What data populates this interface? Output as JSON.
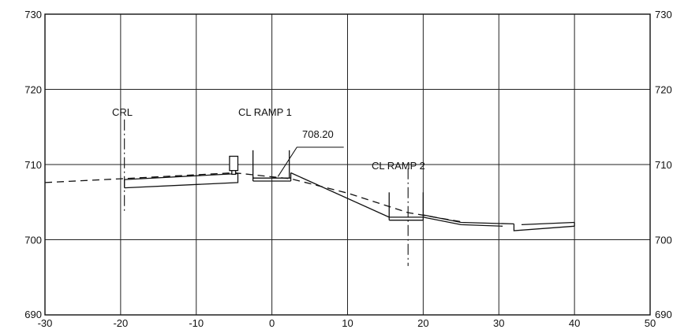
{
  "chart_data": {
    "type": "cross-section",
    "xlim": [
      -30,
      50
    ],
    "ylim": [
      690,
      730
    ],
    "x_ticks": [
      -30,
      -20,
      -10,
      0,
      10,
      20,
      30,
      40,
      50
    ],
    "y_ticks": [
      690,
      700,
      710,
      720,
      730
    ],
    "grid": true,
    "annotations": {
      "crl": "CRL",
      "cl_ramp_1": "CL RAMP 1",
      "cl_ramp_2": "CL RAMP 2",
      "elevation": "708.20"
    },
    "existing_ground": [
      [
        -30,
        707.6
      ],
      [
        -20,
        708.1
      ],
      [
        -5,
        708.9
      ],
      [
        2.5,
        708.1
      ],
      [
        10,
        706.2
      ],
      [
        18,
        703.6
      ],
      [
        25,
        702.4
      ]
    ],
    "proposed_surface": [
      [
        -19.5,
        708.0
      ],
      [
        -4.5,
        708.8
      ],
      [
        2.5,
        708.9
      ],
      [
        15.5,
        703.0
      ],
      [
        20,
        703.3
      ],
      [
        25,
        702.3
      ],
      [
        33,
        702.0
      ],
      [
        40,
        702.2
      ]
    ]
  }
}
